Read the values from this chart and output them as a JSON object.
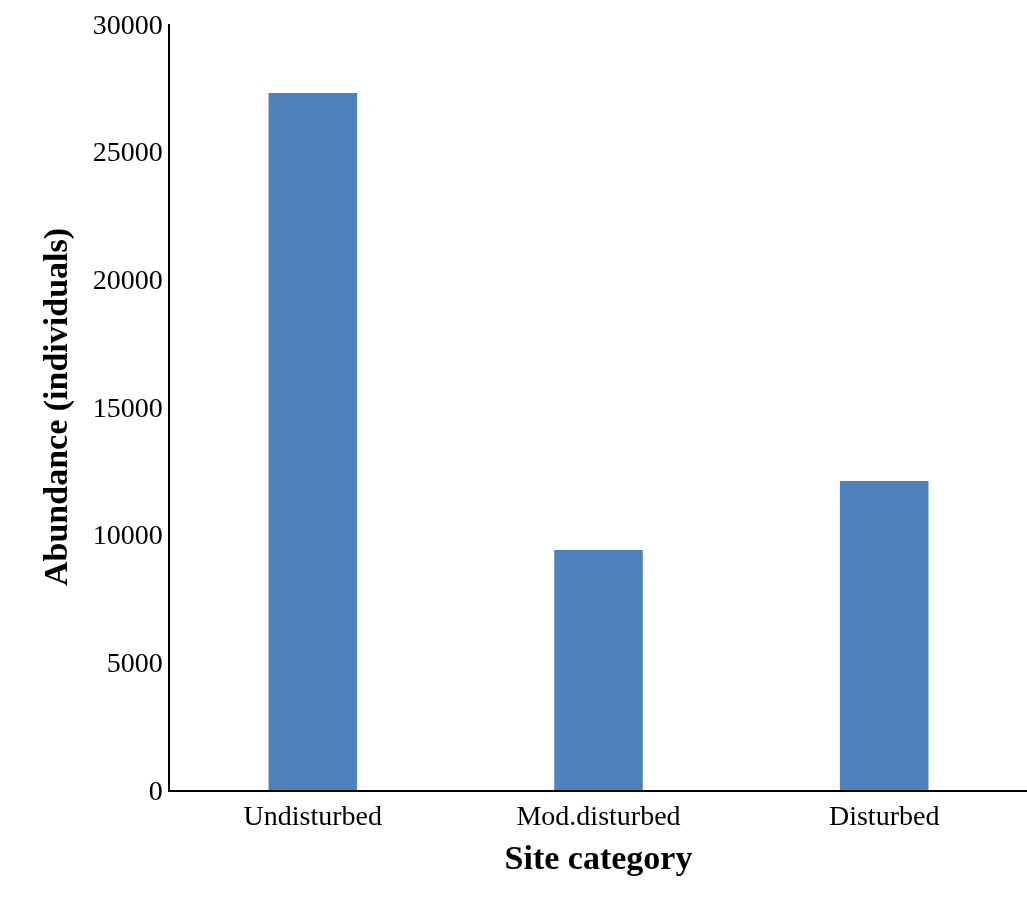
{
  "chart_data": {
    "type": "bar",
    "xlabel": "Site category",
    "ylabel": "Abundance (individuals)",
    "categories": [
      "Undisturbed",
      "Mod.disturbed",
      "Disturbed"
    ],
    "values": [
      27300,
      9400,
      12100
    ],
    "color": "#4f81bd",
    "ylim": [
      0,
      30000
    ],
    "yticks": [
      0,
      5000,
      10000,
      15000,
      20000,
      25000,
      30000
    ]
  }
}
